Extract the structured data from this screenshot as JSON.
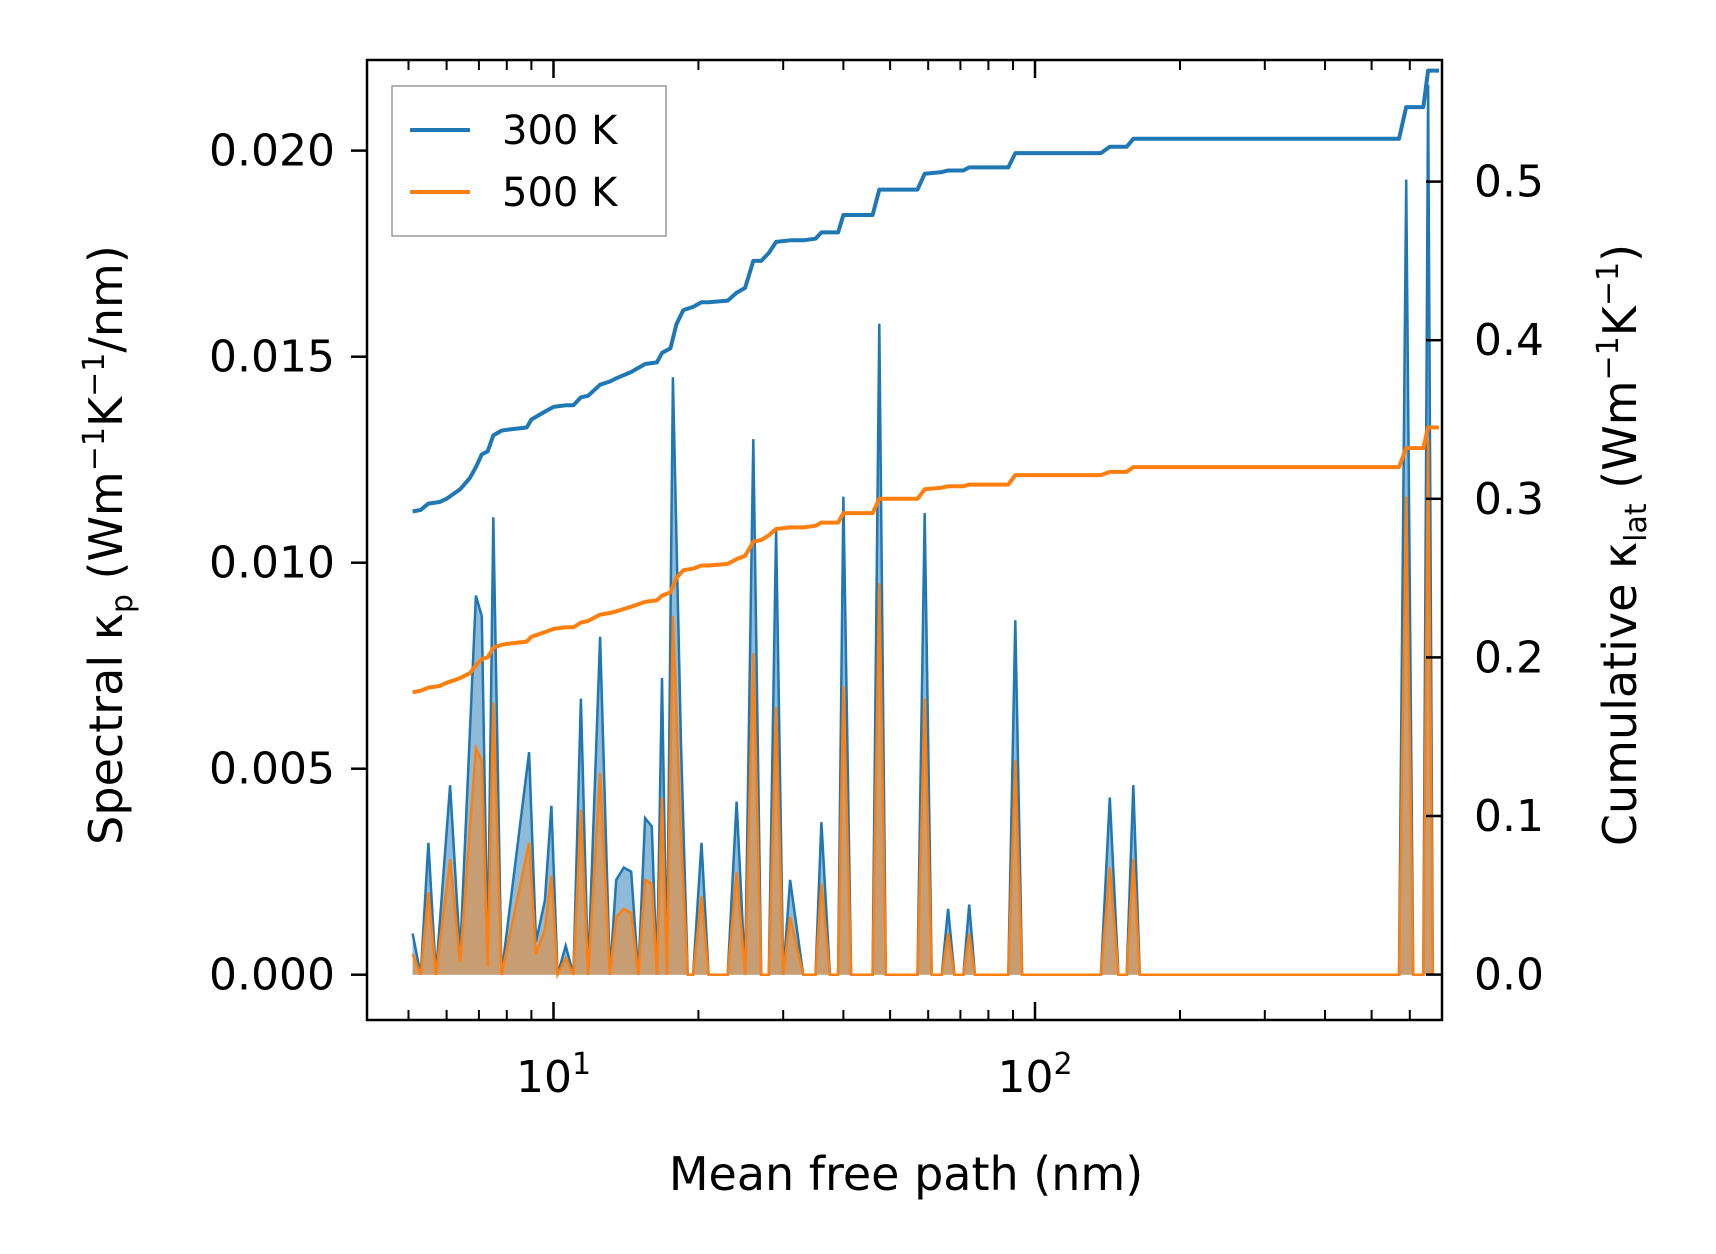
{
  "chart_data": {
    "type": "line",
    "xscale": "log",
    "xlabel": "Mean free path (nm)",
    "ylabel_left": {
      "prefix": "Spectral κ",
      "sub": "p",
      "open": " (Wm",
      "e1": "−1",
      "mid": "K",
      "e2": "−1",
      "close": "/nm)"
    },
    "ylabel_right": {
      "prefix": "Cumulative κ",
      "sub": "lat",
      "open": " (Wm",
      "e1": "−1",
      "mid": "K",
      "e2": "−1",
      "close": ")"
    },
    "xlim": [
      4.1,
      700
    ],
    "ylim_left": [
      -0.0011,
      0.0222
    ],
    "ylim_right": [
      -0.0286,
      0.5767
    ],
    "x_ticks": [
      {
        "value": 10,
        "base": "10",
        "exp": "1"
      },
      {
        "value": 100,
        "base": "10",
        "exp": "2"
      }
    ],
    "y_left_ticks": [
      {
        "value": 0.0,
        "label": "0.000"
      },
      {
        "value": 0.005,
        "label": "0.005"
      },
      {
        "value": 0.01,
        "label": "0.010"
      },
      {
        "value": 0.015,
        "label": "0.015"
      },
      {
        "value": 0.02,
        "label": "0.020"
      }
    ],
    "y_right_ticks": [
      {
        "value": 0.0,
        "label": "0.0"
      },
      {
        "value": 0.1,
        "label": "0.1"
      },
      {
        "value": 0.2,
        "label": "0.2"
      },
      {
        "value": 0.3,
        "label": "0.3"
      },
      {
        "value": 0.4,
        "label": "0.4"
      },
      {
        "value": 0.5,
        "label": "0.5"
      }
    ],
    "legend": {
      "placement": "top-left",
      "entries": [
        {
          "label": "300 K",
          "color": "#1f77b4"
        },
        {
          "label": "500 K",
          "color": "#ff7f0e"
        }
      ]
    },
    "series": [
      {
        "name": "300 K",
        "color": "#1f77b4",
        "spectral": [
          [
            5.1,
            0.001
          ],
          [
            5.3,
            0.0
          ],
          [
            5.5,
            0.0032
          ],
          [
            5.7,
            0.0
          ],
          [
            6.1,
            0.0046
          ],
          [
            6.4,
            0.0005
          ],
          [
            6.9,
            0.0092
          ],
          [
            7.1,
            0.0087
          ],
          [
            7.3,
            0.0004
          ],
          [
            7.5,
            0.0111
          ],
          [
            7.8,
            0.0
          ],
          [
            8.9,
            0.0054
          ],
          [
            9.2,
            0.0008
          ],
          [
            9.6,
            0.0018
          ],
          [
            9.9,
            0.0041
          ],
          [
            10.2,
            0.0
          ],
          [
            10.6,
            0.0007
          ],
          [
            11.0,
            0.0
          ],
          [
            11.4,
            0.0067
          ],
          [
            11.8,
            0.0
          ],
          [
            12.5,
            0.0082
          ],
          [
            13.1,
            0.0
          ],
          [
            13.5,
            0.0023
          ],
          [
            14.0,
            0.0026
          ],
          [
            14.5,
            0.0025
          ],
          [
            15.0,
            0.0
          ],
          [
            15.5,
            0.0038
          ],
          [
            16.0,
            0.0036
          ],
          [
            16.4,
            0.0
          ],
          [
            16.8,
            0.0072
          ],
          [
            17.2,
            0.0
          ],
          [
            17.7,
            0.0145
          ],
          [
            18.4,
            0.0056
          ],
          [
            19.0,
            0.0
          ],
          [
            19.5,
            0.0
          ],
          [
            20.3,
            0.0032
          ],
          [
            21.0,
            0.0
          ],
          [
            23.0,
            0.0
          ],
          [
            24.0,
            0.0042
          ],
          [
            25.0,
            0.0
          ],
          [
            26.0,
            0.013
          ],
          [
            27.0,
            0.0
          ],
          [
            28.0,
            0.0
          ],
          [
            29.0,
            0.0108
          ],
          [
            30.0,
            0.0
          ],
          [
            31.0,
            0.0023
          ],
          [
            33.0,
            0.0
          ],
          [
            35.0,
            0.0
          ],
          [
            36.0,
            0.0037
          ],
          [
            37.5,
            0.0
          ],
          [
            39.0,
            0.0
          ],
          [
            40.0,
            0.0116
          ],
          [
            41.5,
            0.0
          ],
          [
            46.0,
            0.0
          ],
          [
            47.5,
            0.0158
          ],
          [
            49.0,
            0.0
          ],
          [
            57.0,
            0.0
          ],
          [
            59.0,
            0.0112
          ],
          [
            61.0,
            0.0
          ],
          [
            64.0,
            0.0
          ],
          [
            66.0,
            0.0016
          ],
          [
            68.0,
            0.0
          ],
          [
            71.0,
            0.0
          ],
          [
            73.0,
            0.0017
          ],
          [
            75.0,
            0.0
          ],
          [
            88.0,
            0.0
          ],
          [
            91.0,
            0.0086
          ],
          [
            94.0,
            0.0
          ],
          [
            137.0,
            0.0
          ],
          [
            143.0,
            0.0043
          ],
          [
            149.0,
            0.0
          ],
          [
            155.0,
            0.0
          ],
          [
            160.0,
            0.0046
          ],
          [
            165.0,
            0.0
          ],
          [
            570.0,
            0.0
          ],
          [
            590.0,
            0.0193
          ],
          [
            610.0,
            0.0
          ],
          [
            640.0,
            0.0
          ],
          [
            655.0,
            0.0216
          ],
          [
            670.0,
            0.0
          ]
        ],
        "cumulative": [
          [
            5.1,
            0.292
          ],
          [
            5.3,
            0.293
          ],
          [
            5.5,
            0.297
          ],
          [
            5.8,
            0.298
          ],
          [
            6.0,
            0.3
          ],
          [
            6.4,
            0.306
          ],
          [
            6.7,
            0.313
          ],
          [
            6.9,
            0.32
          ],
          [
            7.1,
            0.328
          ],
          [
            7.3,
            0.33
          ],
          [
            7.5,
            0.34
          ],
          [
            7.8,
            0.343
          ],
          [
            8.2,
            0.344
          ],
          [
            8.8,
            0.345
          ],
          [
            9.0,
            0.35
          ],
          [
            9.6,
            0.355
          ],
          [
            10.0,
            0.358
          ],
          [
            10.6,
            0.359
          ],
          [
            11.0,
            0.359
          ],
          [
            11.4,
            0.364
          ],
          [
            11.8,
            0.365
          ],
          [
            12.5,
            0.372
          ],
          [
            13.1,
            0.374
          ],
          [
            13.5,
            0.376
          ],
          [
            14.5,
            0.38
          ],
          [
            15.5,
            0.385
          ],
          [
            16.4,
            0.386
          ],
          [
            16.8,
            0.392
          ],
          [
            17.5,
            0.395
          ],
          [
            18.0,
            0.41
          ],
          [
            18.6,
            0.419
          ],
          [
            19.5,
            0.421
          ],
          [
            20.3,
            0.424
          ],
          [
            21.0,
            0.424
          ],
          [
            23.0,
            0.425
          ],
          [
            24.0,
            0.43
          ],
          [
            25.0,
            0.433
          ],
          [
            26.0,
            0.45
          ],
          [
            27.0,
            0.45
          ],
          [
            28.0,
            0.455
          ],
          [
            29.0,
            0.462
          ],
          [
            31.0,
            0.463
          ],
          [
            33.0,
            0.463
          ],
          [
            35.0,
            0.464
          ],
          [
            36.0,
            0.468
          ],
          [
            39.0,
            0.468
          ],
          [
            40.0,
            0.479
          ],
          [
            46.0,
            0.479
          ],
          [
            47.5,
            0.495
          ],
          [
            57.0,
            0.495
          ],
          [
            59.0,
            0.505
          ],
          [
            64.0,
            0.506
          ],
          [
            66.0,
            0.507
          ],
          [
            71.0,
            0.507
          ],
          [
            73.0,
            0.509
          ],
          [
            88.0,
            0.509
          ],
          [
            91.0,
            0.518
          ],
          [
            137.0,
            0.518
          ],
          [
            143.0,
            0.522
          ],
          [
            155.0,
            0.522
          ],
          [
            160.0,
            0.527
          ],
          [
            570.0,
            0.527
          ],
          [
            590.0,
            0.547
          ],
          [
            640.0,
            0.547
          ],
          [
            655.0,
            0.57
          ],
          [
            690.0,
            0.57
          ]
        ]
      },
      {
        "name": "500 K",
        "color": "#ff7f0e",
        "spectral": [
          [
            5.1,
            0.0005
          ],
          [
            5.3,
            0.0
          ],
          [
            5.5,
            0.002
          ],
          [
            5.7,
            0.0
          ],
          [
            6.1,
            0.0028
          ],
          [
            6.4,
            0.0003
          ],
          [
            6.9,
            0.0055
          ],
          [
            7.1,
            0.0052
          ],
          [
            7.3,
            0.0002
          ],
          [
            7.5,
            0.0066
          ],
          [
            7.8,
            0.0
          ],
          [
            8.9,
            0.0032
          ],
          [
            9.2,
            0.0005
          ],
          [
            9.6,
            0.0011
          ],
          [
            9.9,
            0.0024
          ],
          [
            10.2,
            0.0
          ],
          [
            10.6,
            0.0004
          ],
          [
            11.0,
            0.0
          ],
          [
            11.4,
            0.004
          ],
          [
            11.8,
            0.0
          ],
          [
            12.5,
            0.0049
          ],
          [
            13.1,
            0.0
          ],
          [
            13.5,
            0.0014
          ],
          [
            14.0,
            0.0016
          ],
          [
            14.5,
            0.0015
          ],
          [
            15.0,
            0.0
          ],
          [
            15.5,
            0.0023
          ],
          [
            16.0,
            0.0022
          ],
          [
            16.4,
            0.0
          ],
          [
            16.8,
            0.0043
          ],
          [
            17.2,
            0.0
          ],
          [
            17.7,
            0.0087
          ],
          [
            18.4,
            0.0033
          ],
          [
            19.0,
            0.0
          ],
          [
            19.5,
            0.0
          ],
          [
            20.3,
            0.0019
          ],
          [
            21.0,
            0.0
          ],
          [
            23.0,
            0.0
          ],
          [
            24.0,
            0.0025
          ],
          [
            25.0,
            0.0
          ],
          [
            26.0,
            0.0078
          ],
          [
            27.0,
            0.0
          ],
          [
            28.0,
            0.0
          ],
          [
            29.0,
            0.0065
          ],
          [
            30.0,
            0.0
          ],
          [
            31.0,
            0.0014
          ],
          [
            33.0,
            0.0
          ],
          [
            35.0,
            0.0
          ],
          [
            36.0,
            0.0022
          ],
          [
            37.5,
            0.0
          ],
          [
            39.0,
            0.0
          ],
          [
            40.0,
            0.007
          ],
          [
            41.5,
            0.0
          ],
          [
            46.0,
            0.0
          ],
          [
            47.5,
            0.0095
          ],
          [
            49.0,
            0.0
          ],
          [
            57.0,
            0.0
          ],
          [
            59.0,
            0.0067
          ],
          [
            61.0,
            0.0
          ],
          [
            64.0,
            0.0
          ],
          [
            66.0,
            0.001
          ],
          [
            68.0,
            0.0
          ],
          [
            71.0,
            0.0
          ],
          [
            73.0,
            0.001
          ],
          [
            75.0,
            0.0
          ],
          [
            88.0,
            0.0
          ],
          [
            91.0,
            0.0052
          ],
          [
            94.0,
            0.0
          ],
          [
            137.0,
            0.0
          ],
          [
            143.0,
            0.0026
          ],
          [
            149.0,
            0.0
          ],
          [
            155.0,
            0.0
          ],
          [
            160.0,
            0.0028
          ],
          [
            165.0,
            0.0
          ],
          [
            570.0,
            0.0
          ],
          [
            590.0,
            0.0116
          ],
          [
            610.0,
            0.0
          ],
          [
            640.0,
            0.0
          ],
          [
            655.0,
            0.013
          ],
          [
            670.0,
            0.0
          ]
        ],
        "cumulative": [
          [
            5.1,
            0.178
          ],
          [
            5.3,
            0.179
          ],
          [
            5.5,
            0.181
          ],
          [
            5.8,
            0.182
          ],
          [
            6.0,
            0.184
          ],
          [
            6.4,
            0.187
          ],
          [
            6.7,
            0.19
          ],
          [
            6.9,
            0.195
          ],
          [
            7.1,
            0.199
          ],
          [
            7.3,
            0.2
          ],
          [
            7.5,
            0.206
          ],
          [
            7.8,
            0.208
          ],
          [
            8.2,
            0.209
          ],
          [
            8.8,
            0.21
          ],
          [
            9.0,
            0.213
          ],
          [
            9.6,
            0.216
          ],
          [
            10.0,
            0.218
          ],
          [
            10.6,
            0.219
          ],
          [
            11.0,
            0.219
          ],
          [
            11.4,
            0.222
          ],
          [
            11.8,
            0.223
          ],
          [
            12.5,
            0.227
          ],
          [
            13.1,
            0.228
          ],
          [
            13.5,
            0.229
          ],
          [
            14.5,
            0.232
          ],
          [
            15.5,
            0.235
          ],
          [
            16.4,
            0.236
          ],
          [
            16.8,
            0.239
          ],
          [
            17.5,
            0.241
          ],
          [
            18.0,
            0.25
          ],
          [
            18.6,
            0.255
          ],
          [
            19.5,
            0.256
          ],
          [
            20.3,
            0.258
          ],
          [
            21.0,
            0.258
          ],
          [
            23.0,
            0.259
          ],
          [
            24.0,
            0.262
          ],
          [
            25.0,
            0.264
          ],
          [
            26.0,
            0.273
          ],
          [
            27.0,
            0.274
          ],
          [
            28.0,
            0.277
          ],
          [
            29.0,
            0.281
          ],
          [
            31.0,
            0.282
          ],
          [
            33.0,
            0.282
          ],
          [
            35.0,
            0.283
          ],
          [
            36.0,
            0.285
          ],
          [
            39.0,
            0.285
          ],
          [
            40.0,
            0.291
          ],
          [
            46.0,
            0.291
          ],
          [
            47.5,
            0.3
          ],
          [
            57.0,
            0.3
          ],
          [
            59.0,
            0.306
          ],
          [
            64.0,
            0.307
          ],
          [
            66.0,
            0.308
          ],
          [
            71.0,
            0.308
          ],
          [
            73.0,
            0.309
          ],
          [
            88.0,
            0.309
          ],
          [
            91.0,
            0.315
          ],
          [
            137.0,
            0.315
          ],
          [
            143.0,
            0.317
          ],
          [
            155.0,
            0.317
          ],
          [
            160.0,
            0.32
          ],
          [
            570.0,
            0.32
          ],
          [
            590.0,
            0.332
          ],
          [
            640.0,
            0.332
          ],
          [
            655.0,
            0.345
          ],
          [
            690.0,
            0.345
          ]
        ]
      }
    ]
  }
}
